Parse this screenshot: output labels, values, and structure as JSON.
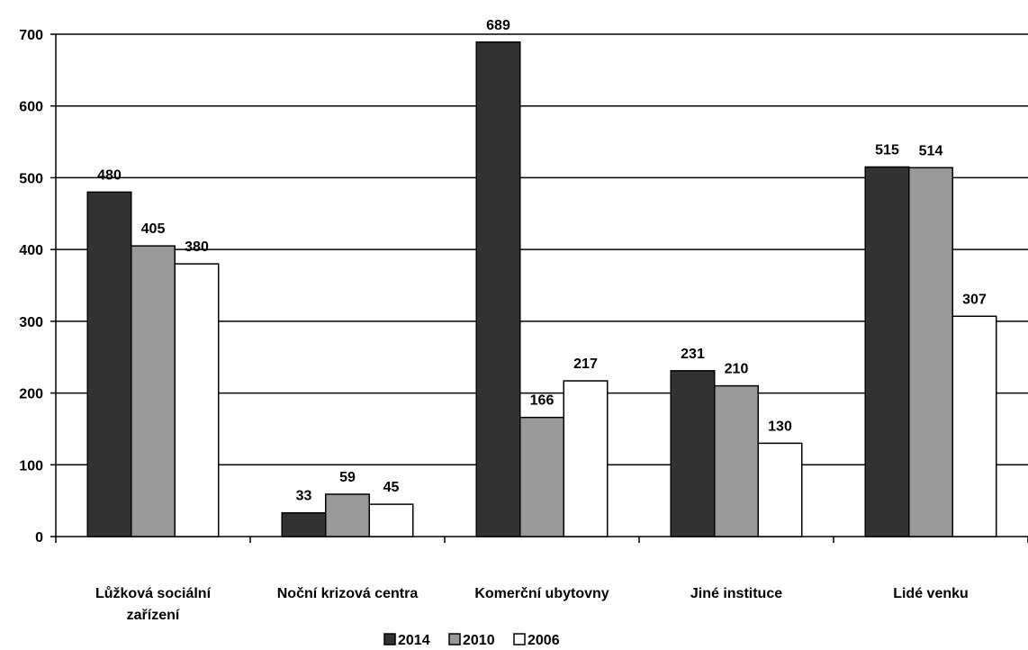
{
  "chart_data": {
    "type": "bar",
    "categories": [
      [
        "Lůžková sociální",
        "zařízení"
      ],
      [
        "Noční krizová centra"
      ],
      [
        "Komerční ubytovny"
      ],
      [
        "Jiné instituce"
      ],
      [
        "Lidé venku"
      ]
    ],
    "series": [
      {
        "name": "2014",
        "values": [
          480,
          33,
          689,
          231,
          515
        ],
        "color": "#333333"
      },
      {
        "name": "2010",
        "values": [
          405,
          59,
          166,
          210,
          514
        ],
        "color": "#999999"
      },
      {
        "name": "2006",
        "values": [
          380,
          45,
          217,
          130,
          307
        ],
        "color": "#ffffff"
      }
    ],
    "ylim": [
      0,
      700
    ],
    "yticks": [
      0,
      100,
      200,
      300,
      400,
      500,
      600,
      700
    ],
    "grid": true,
    "legend": "bottom"
  }
}
